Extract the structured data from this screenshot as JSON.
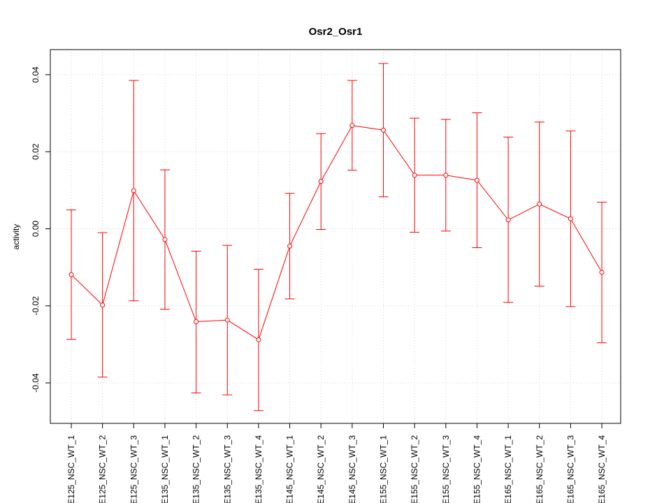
{
  "chart_data": {
    "type": "line",
    "title": "Osr2_Osr1",
    "xlabel": "",
    "ylabel": "activity",
    "ylim": [
      -0.0505,
      0.0465
    ],
    "yticks": [
      -0.04,
      -0.02,
      0.0,
      0.02,
      0.04
    ],
    "ytick_labels": [
      "-0.04",
      "-0.02",
      "0.00",
      "0.02",
      "0.04"
    ],
    "grid": true,
    "color": "#ff0000",
    "categories": [
      "E125_NSC_WT_1",
      "E125_NSC_WT_2",
      "E125_NSC_WT_3",
      "E135_NSC_WT_1",
      "E135_NSC_WT_2",
      "E135_NSC_WT_3",
      "E135_NSC_WT_4",
      "E145_NSC_WT_1",
      "E145_NSC_WT_2",
      "E145_NSC_WT_3",
      "E155_NSC_WT_1",
      "E155_NSC_WT_2",
      "E155_NSC_WT_3",
      "E155_NSC_WT_4",
      "E165_NSC_WT_1",
      "E165_NSC_WT_2",
      "E165_NSC_WT_3",
      "E165_NSC_WT_4"
    ],
    "series": [
      {
        "values": [
          -0.0119,
          -0.0198,
          0.0099,
          -0.0028,
          -0.0241,
          -0.0237,
          -0.0288,
          -0.0045,
          0.0123,
          0.0268,
          0.0256,
          0.0139,
          0.0139,
          0.0126,
          0.0023,
          0.0064,
          0.0026,
          -0.0113
        ],
        "upper": [
          0.0049,
          -0.001,
          0.0385,
          0.0153,
          -0.0058,
          -0.0043,
          -0.0105,
          0.0092,
          0.0247,
          0.0385,
          0.0429,
          0.0287,
          0.0284,
          0.0301,
          0.0238,
          0.0277,
          0.0254,
          0.0069
        ],
        "lower": [
          -0.0287,
          -0.0385,
          -0.0187,
          -0.0209,
          -0.0426,
          -0.0431,
          -0.0472,
          -0.0182,
          -0.0002,
          0.0152,
          0.0083,
          -0.0009,
          -0.0006,
          -0.0049,
          -0.0191,
          -0.0149,
          -0.0202,
          -0.0296
        ]
      }
    ]
  }
}
